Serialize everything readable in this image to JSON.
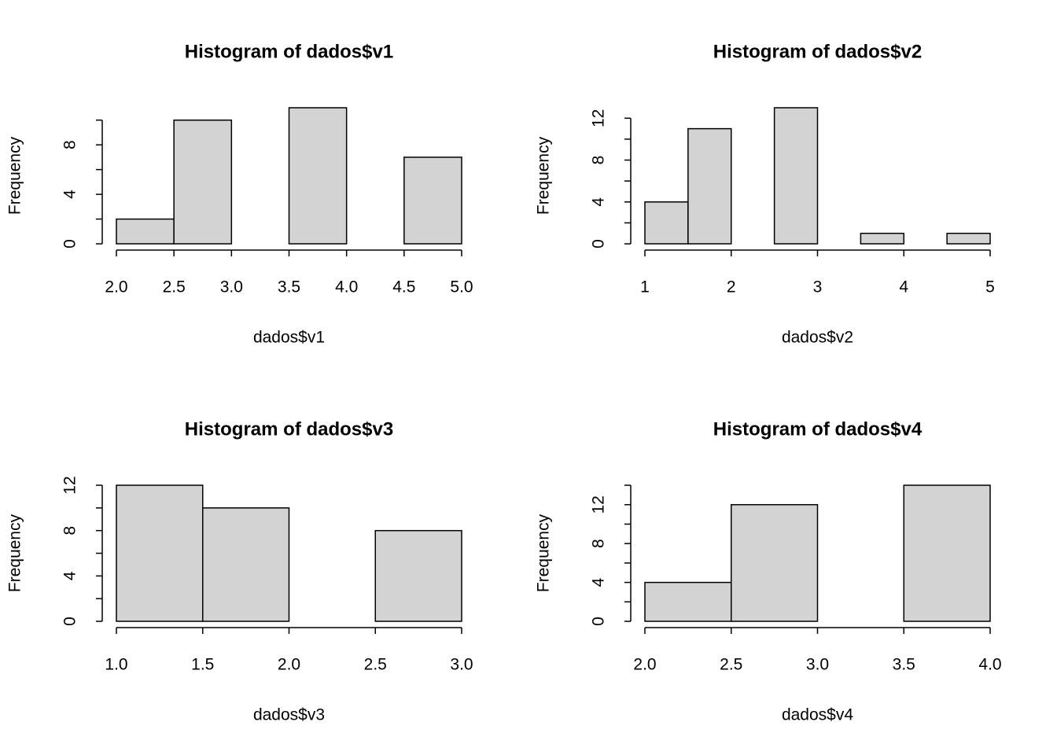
{
  "chart_data": [
    {
      "type": "histogram",
      "title": "Histogram of dados$v1",
      "xlabel": "dados$v1",
      "ylabel": "Frequency",
      "bins": [
        2.0,
        2.5,
        3.0,
        3.5,
        4.0,
        4.5,
        5.0
      ],
      "values": [
        2,
        10,
        0,
        11,
        0,
        7
      ],
      "color": "#d3d3d3",
      "xlim": [
        2,
        5
      ],
      "xticks": [
        {
          "value": 2,
          "label": "2.0"
        },
        {
          "value": 2.5,
          "label": "2.5"
        },
        {
          "value": 3,
          "label": "3.0"
        },
        {
          "value": 3.5,
          "label": "3.5"
        },
        {
          "value": 4,
          "label": "4.0"
        },
        {
          "value": 4.5,
          "label": "4.5"
        },
        {
          "value": 5,
          "label": "5.0"
        }
      ],
      "ylim": [
        0,
        11
      ],
      "yticks": [
        0,
        4,
        8
      ],
      "yminor": [
        2,
        6,
        10
      ]
    },
    {
      "type": "histogram",
      "title": "Histogram of dados$v2",
      "xlabel": "dados$v2",
      "ylabel": "Frequency",
      "bins": [
        1.0,
        1.5,
        2.0,
        2.5,
        3.0,
        3.5,
        4.0,
        4.5,
        5.0
      ],
      "values": [
        4,
        11,
        0,
        13,
        0,
        1,
        0,
        1
      ],
      "color": "#d3d3d3",
      "xlim": [
        1,
        5
      ],
      "xticks": [
        1,
        2,
        3,
        4,
        5
      ],
      "ylim": [
        0,
        13
      ],
      "yticks": [
        0,
        4,
        8,
        12
      ],
      "yminor": [
        2,
        6,
        10
      ]
    },
    {
      "type": "histogram",
      "title": "Histogram of dados$v3",
      "xlabel": "dados$v3",
      "ylabel": "Frequency",
      "bins": [
        1.0,
        1.5,
        2.0,
        2.5,
        3.0
      ],
      "values": [
        12,
        10,
        0,
        8
      ],
      "color": "#d3d3d3",
      "xlim": [
        1,
        3
      ],
      "xticks": [
        {
          "value": 1,
          "label": "1.0"
        },
        {
          "value": 1.5,
          "label": "1.5"
        },
        {
          "value": 2,
          "label": "2.0"
        },
        {
          "value": 2.5,
          "label": "2.5"
        },
        {
          "value": 3,
          "label": "3.0"
        }
      ],
      "ylim": [
        0,
        12
      ],
      "yticks": [
        0,
        4,
        8,
        12
      ],
      "yminor": [
        2,
        6,
        10
      ]
    },
    {
      "type": "histogram",
      "title": "Histogram of dados$v4",
      "xlabel": "dados$v4",
      "ylabel": "Frequency",
      "bins": [
        2.0,
        2.5,
        3.0,
        3.5,
        4.0
      ],
      "values": [
        4,
        12,
        0,
        14
      ],
      "color": "#d3d3d3",
      "xlim": [
        2,
        4
      ],
      "xticks": [
        {
          "value": 2,
          "label": "2.0"
        },
        {
          "value": 2.5,
          "label": "2.5"
        },
        {
          "value": 3,
          "label": "3.0"
        },
        {
          "value": 3.5,
          "label": "3.5"
        },
        {
          "value": 4,
          "label": "4.0"
        }
      ],
      "ylim": [
        0,
        14
      ],
      "yticks": [
        0,
        4,
        8,
        12
      ],
      "yminor": [
        2,
        6,
        10,
        14
      ]
    }
  ]
}
